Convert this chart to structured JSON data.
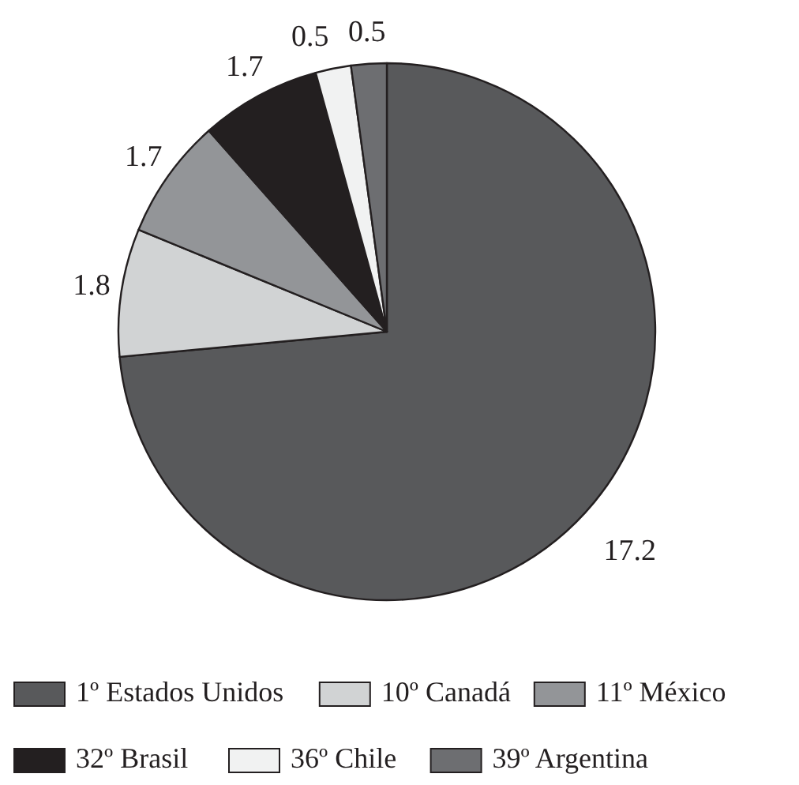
{
  "chart_data": {
    "type": "pie",
    "categories": [
      "1º Estados Unidos",
      "10º Canadá",
      "11º México",
      "32º Brasil",
      "36º Chile",
      "39º Argentina"
    ],
    "values": [
      17.2,
      1.8,
      1.7,
      1.7,
      0.5,
      0.5
    ],
    "colors": [
      "#58595b",
      "#d1d3d4",
      "#939598",
      "#231f20",
      "#f1f2f2",
      "#6d6e71"
    ],
    "data_labels": true,
    "legend": "bottom"
  }
}
